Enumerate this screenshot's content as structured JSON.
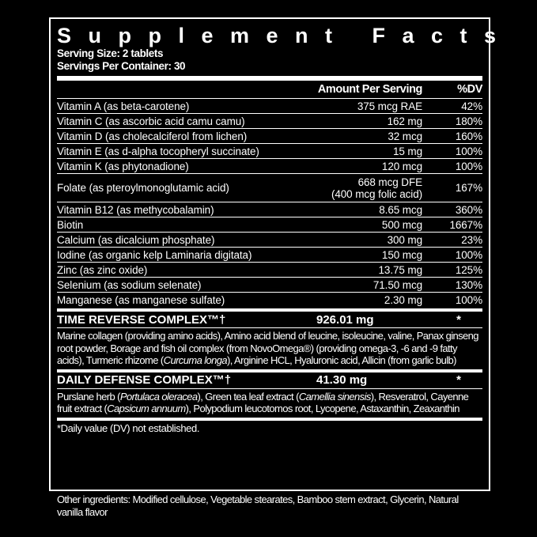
{
  "title": "Supplement Facts",
  "serving_size": "Serving Size: 2 tablets",
  "servings_per_container": "Servings Per Container: 30",
  "header": {
    "amount": "Amount Per Serving",
    "dv": "%DV"
  },
  "nutrients": [
    {
      "name": "Vitamin A (as beta-carotene)",
      "amount": "375 mcg RAE",
      "dv": "42%"
    },
    {
      "name": "Vitamin C (as ascorbic acid camu camu)",
      "amount": "162 mg",
      "dv": "180%"
    },
    {
      "name": "Vitamin D (as cholecalciferol from lichen)",
      "amount": "32 mcg",
      "dv": "160%"
    },
    {
      "name": "Vitamin E (as d-alpha tocopheryl succinate)",
      "amount": "15 mg",
      "dv": "100%"
    },
    {
      "name": "Vitamin K (as phytonadione)",
      "amount": "120 mcg",
      "dv": "100%"
    },
    {
      "name": "Folate (as pteroylmonoglutamic acid)",
      "amount": "668 mcg DFE",
      "amount2": "(400 mcg folic acid)",
      "dv": "167%"
    },
    {
      "name": "Vitamin B12 (as methycobalamin)",
      "amount": "8.65 mcg",
      "dv": "360%"
    },
    {
      "name": "Biotin",
      "amount": "500 mcg",
      "dv": "1667%"
    },
    {
      "name": "Calcium (as dicalcium phosphate)",
      "amount": "300 mg",
      "dv": "23%"
    },
    {
      "name": "Iodine (as organic kelp Laminaria digitata)",
      "amount": "150 mcg",
      "dv": "100%"
    },
    {
      "name": "Zinc (as zinc oxide)",
      "amount": "13.75 mg",
      "dv": "125%"
    },
    {
      "name": "Selenium (as sodium selenate)",
      "amount": "71.50 mcg",
      "dv": "130%"
    },
    {
      "name": "Manganese (as manganese sulfate)",
      "amount": "2.30 mg",
      "dv": "100%"
    }
  ],
  "complexes": [
    {
      "name": "TIME REVERSE COMPLEX™†",
      "amount": "926.01 mg",
      "dv": "*",
      "desc": "Marine collagen (providing amino acids), Amino acid blend of leucine, isoleucine, valine, Panax ginseng root powder, Borage and fish oil complex (from NovoOmega®) (providing omega-3, -6 and -9 fatty acids), Turmeric rhizome (Curcuma longa), Arginine HCL, Hyaluronic acid, Allicin (from garlic bulb)"
    },
    {
      "name": "DAILY DEFENSE COMPLEX™†",
      "amount": "41.30 mg",
      "dv": "*",
      "desc": "Purslane herb (Portulaca oleracea), Green tea leaf extract (Camellia sinensis), Resveratrol, Cayenne fruit extract (Capsicum annuum), Polypodium leucotomos root, Lycopene, Astaxanthin, Zeaxanthin"
    }
  ],
  "footnote": "*Daily value (DV) not established.",
  "other_ingredients": "Other ingredients: Modified cellulose, Vegetable stearates, Bamboo stem extract, Glycerin, Natural vanilla flavor"
}
